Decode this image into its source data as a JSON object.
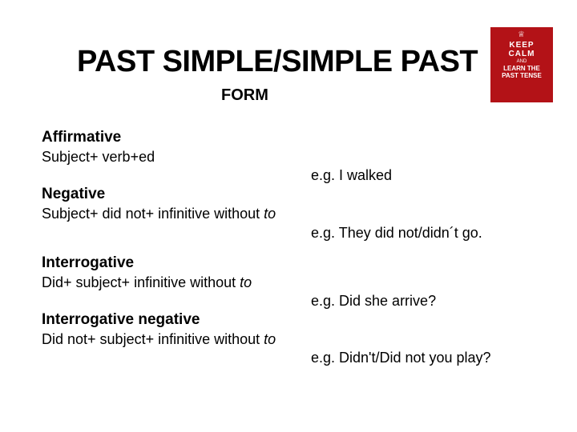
{
  "title": "PAST SIMPLE/SIMPLE PAST",
  "subtitle": "FORM",
  "badge": {
    "bg": "#b31217",
    "crown": "♕",
    "line1": "KEEP",
    "line2": "CALM",
    "and": "AND",
    "line3": "LEARN THE",
    "line4": "PAST TENSE"
  },
  "sections": {
    "affirmative": {
      "heading": "Affirmative",
      "formula": "Subject+ verb+ed",
      "example": "e.g. I  walked"
    },
    "negative": {
      "heading": "Negative",
      "formula_pre": "Subject+ did not+ infinitive without ",
      "formula_ital": "to",
      "example": "e.g. They did not/didn´t go."
    },
    "interrogative": {
      "heading": "Interrogative",
      "formula_pre": "Did+ subject+ infinitive without ",
      "formula_ital": "to",
      "example": "e.g. Did she arrive?"
    },
    "interrogative_neg": {
      "heading": "Interrogative negative",
      "formula_pre": "Did not+ subject+ infinitive without ",
      "formula_ital": "to",
      "example": "e.g. Didn't/Did not you play?"
    }
  }
}
